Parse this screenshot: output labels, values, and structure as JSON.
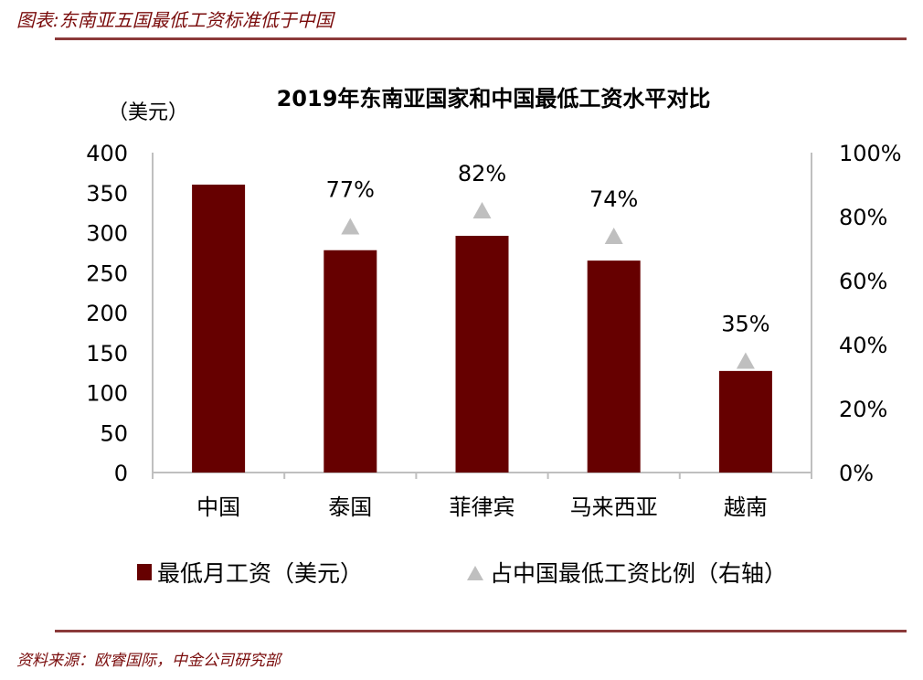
{
  "figure_title": "图表:东南亚五国最低工资标准低于中国",
  "source": "资料来源：欧睿国际，中金公司研究部",
  "chart_data": {
    "type": "bar",
    "title": "2019年东南亚国家和中国最低工资水平对比",
    "ylabel": "（美元）",
    "categories": [
      "中国",
      "泰国",
      "菲律宾",
      "马来西亚",
      "越南"
    ],
    "ylim": [
      0,
      400
    ],
    "yticks": [
      "0",
      "50",
      "100",
      "150",
      "200",
      "250",
      "300",
      "350",
      "400"
    ],
    "y2lim": [
      0,
      100
    ],
    "y2ticks": [
      "0%",
      "20%",
      "40%",
      "60%",
      "80%",
      "100%"
    ],
    "grid": false,
    "legend_position": "bottom",
    "series": [
      {
        "name": "最低月工资（美元）",
        "type": "bar",
        "axis": "left",
        "color": "#660000",
        "values": [
          360,
          278,
          296,
          265,
          127
        ]
      },
      {
        "name": "占中国最低工资比例（右轴）",
        "type": "scatter",
        "marker": "triangle",
        "axis": "right",
        "color": "#bfbfbf",
        "values": [
          null,
          77,
          82,
          74,
          35
        ],
        "labels": [
          null,
          "77%",
          "82%",
          "74%",
          "35%"
        ]
      }
    ]
  }
}
